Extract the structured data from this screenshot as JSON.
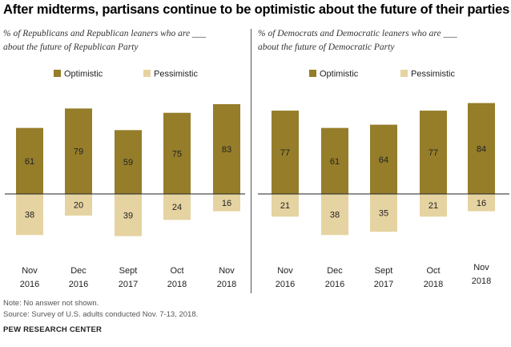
{
  "title": "After midterms, partisans continue to be optimistic about the future of their parties",
  "colors": {
    "optimistic": "#957d2a",
    "pessimistic": "#e5d3a1",
    "baseline": "#222222"
  },
  "chart_data": [
    {
      "type": "bar",
      "subtitle": [
        "% of Republicans and Republican leaners who are ___",
        "about the future of Republican Party"
      ],
      "categories": [
        [
          "Nov",
          "2016"
        ],
        [
          "Dec",
          "2016"
        ],
        [
          "Sept",
          "2017"
        ],
        [
          "Oct",
          "2018"
        ],
        [
          "Nov",
          "2018"
        ]
      ],
      "series": [
        {
          "name": "Optimistic",
          "values": [
            61,
            79,
            59,
            75,
            83
          ]
        },
        {
          "name": "Pessimistic",
          "values": [
            38,
            20,
            39,
            24,
            16
          ]
        }
      ],
      "legend": "top"
    },
    {
      "type": "bar",
      "subtitle": [
        "% of Democrats and Democratic leaners who are ___",
        "about the future of Democratic Party"
      ],
      "categories": [
        [
          "Nov",
          "2016"
        ],
        [
          "Dec",
          "2016"
        ],
        [
          "Sept",
          "2017"
        ],
        [
          "Oct",
          "2018"
        ],
        [
          "Nov",
          "2018"
        ]
      ],
      "series": [
        {
          "name": "Optimistic",
          "values": [
            77,
            61,
            64,
            77,
            84
          ]
        },
        {
          "name": "Pessimistic",
          "values": [
            21,
            38,
            35,
            21,
            16
          ]
        }
      ],
      "legend": "top"
    }
  ],
  "footer": {
    "note": "Note: No answer not shown.",
    "source": "Source: Survey of U.S. adults conducted Nov. 7-13, 2018.",
    "brand": "PEW RESEARCH CENTER"
  }
}
